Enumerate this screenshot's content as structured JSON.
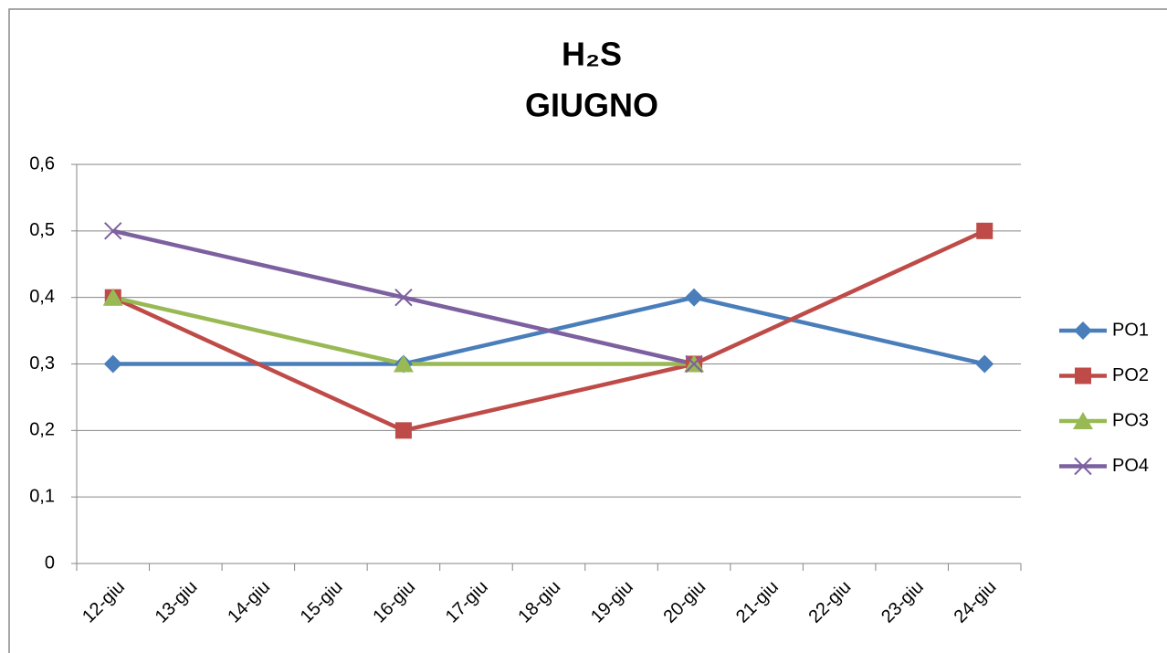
{
  "chart_data": {
    "type": "line",
    "title": "H₂S",
    "subtitle": "GIUGNO",
    "x": [
      "12-giu",
      "16-giu",
      "20-giu",
      "24-giu"
    ],
    "xticks": [
      "12-giu",
      "13-giu",
      "14-giu",
      "15-giu",
      "16-giu",
      "17-giu",
      "18-giu",
      "19-giu",
      "20-giu",
      "21-giu",
      "22-giu",
      "23-giu",
      "24-giu"
    ],
    "series": [
      {
        "name": "PO1",
        "color": "#4a7ebb",
        "marker": "diamond",
        "values": [
          0.3,
          0.3,
          0.4,
          0.3
        ]
      },
      {
        "name": "PO2",
        "color": "#be4b48",
        "marker": "square",
        "values": [
          0.4,
          0.2,
          0.3,
          0.5
        ]
      },
      {
        "name": "PO3",
        "color": "#98b954",
        "marker": "triangle",
        "values": [
          0.4,
          0.3,
          0.3,
          null
        ]
      },
      {
        "name": "PO4",
        "color": "#7d60a0",
        "marker": "x",
        "values": [
          0.5,
          0.4,
          0.3,
          null
        ]
      }
    ],
    "ylim": [
      0,
      0.6
    ],
    "yticks": [
      0,
      {
        "value": 0.1,
        "label": "0,1"
      },
      {
        "value": 0.2,
        "label": "0,2"
      },
      {
        "value": 0.3,
        "label": "0,3"
      },
      {
        "value": 0.4,
        "label": "0,4"
      },
      {
        "value": 0.5,
        "label": "0,5"
      },
      {
        "value": 0.6,
        "label": "0,6"
      }
    ],
    "grid": true,
    "legend": "right"
  }
}
